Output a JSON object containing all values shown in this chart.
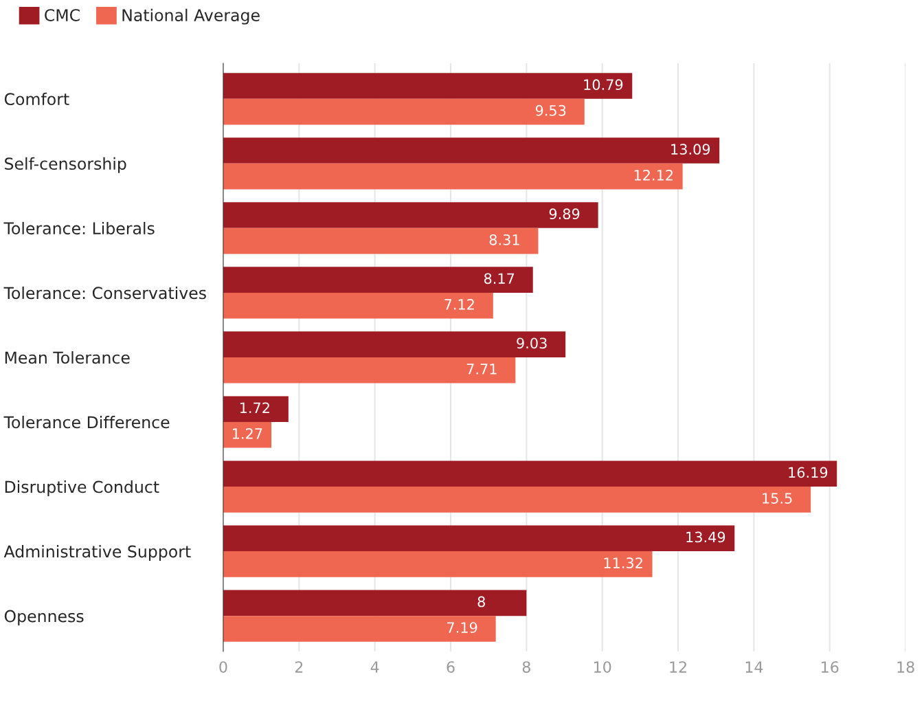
{
  "chart_data": {
    "type": "bar",
    "orientation": "horizontal",
    "categories": [
      "Comfort",
      "Self-censorship",
      "Tolerance: Liberals",
      "Tolerance: Conservatives",
      "Mean Tolerance",
      "Tolerance Difference",
      "Disruptive Conduct",
      "Administrative Support",
      "Openness"
    ],
    "series": [
      {
        "name": "CMC",
        "color": "#a01c24",
        "values": [
          10.79,
          13.09,
          9.89,
          8.17,
          9.03,
          1.72,
          16.19,
          13.49,
          8
        ]
      },
      {
        "name": "National Average",
        "color": "#f06751",
        "values": [
          9.53,
          12.12,
          8.31,
          7.12,
          7.71,
          1.27,
          15.5,
          11.32,
          7.19
        ]
      }
    ],
    "xlim": [
      0,
      18
    ],
    "xticks": [
      0,
      2,
      4,
      6,
      8,
      10,
      12,
      14,
      16,
      18
    ],
    "grid": "x",
    "legend": "top left",
    "data_labels": true
  }
}
